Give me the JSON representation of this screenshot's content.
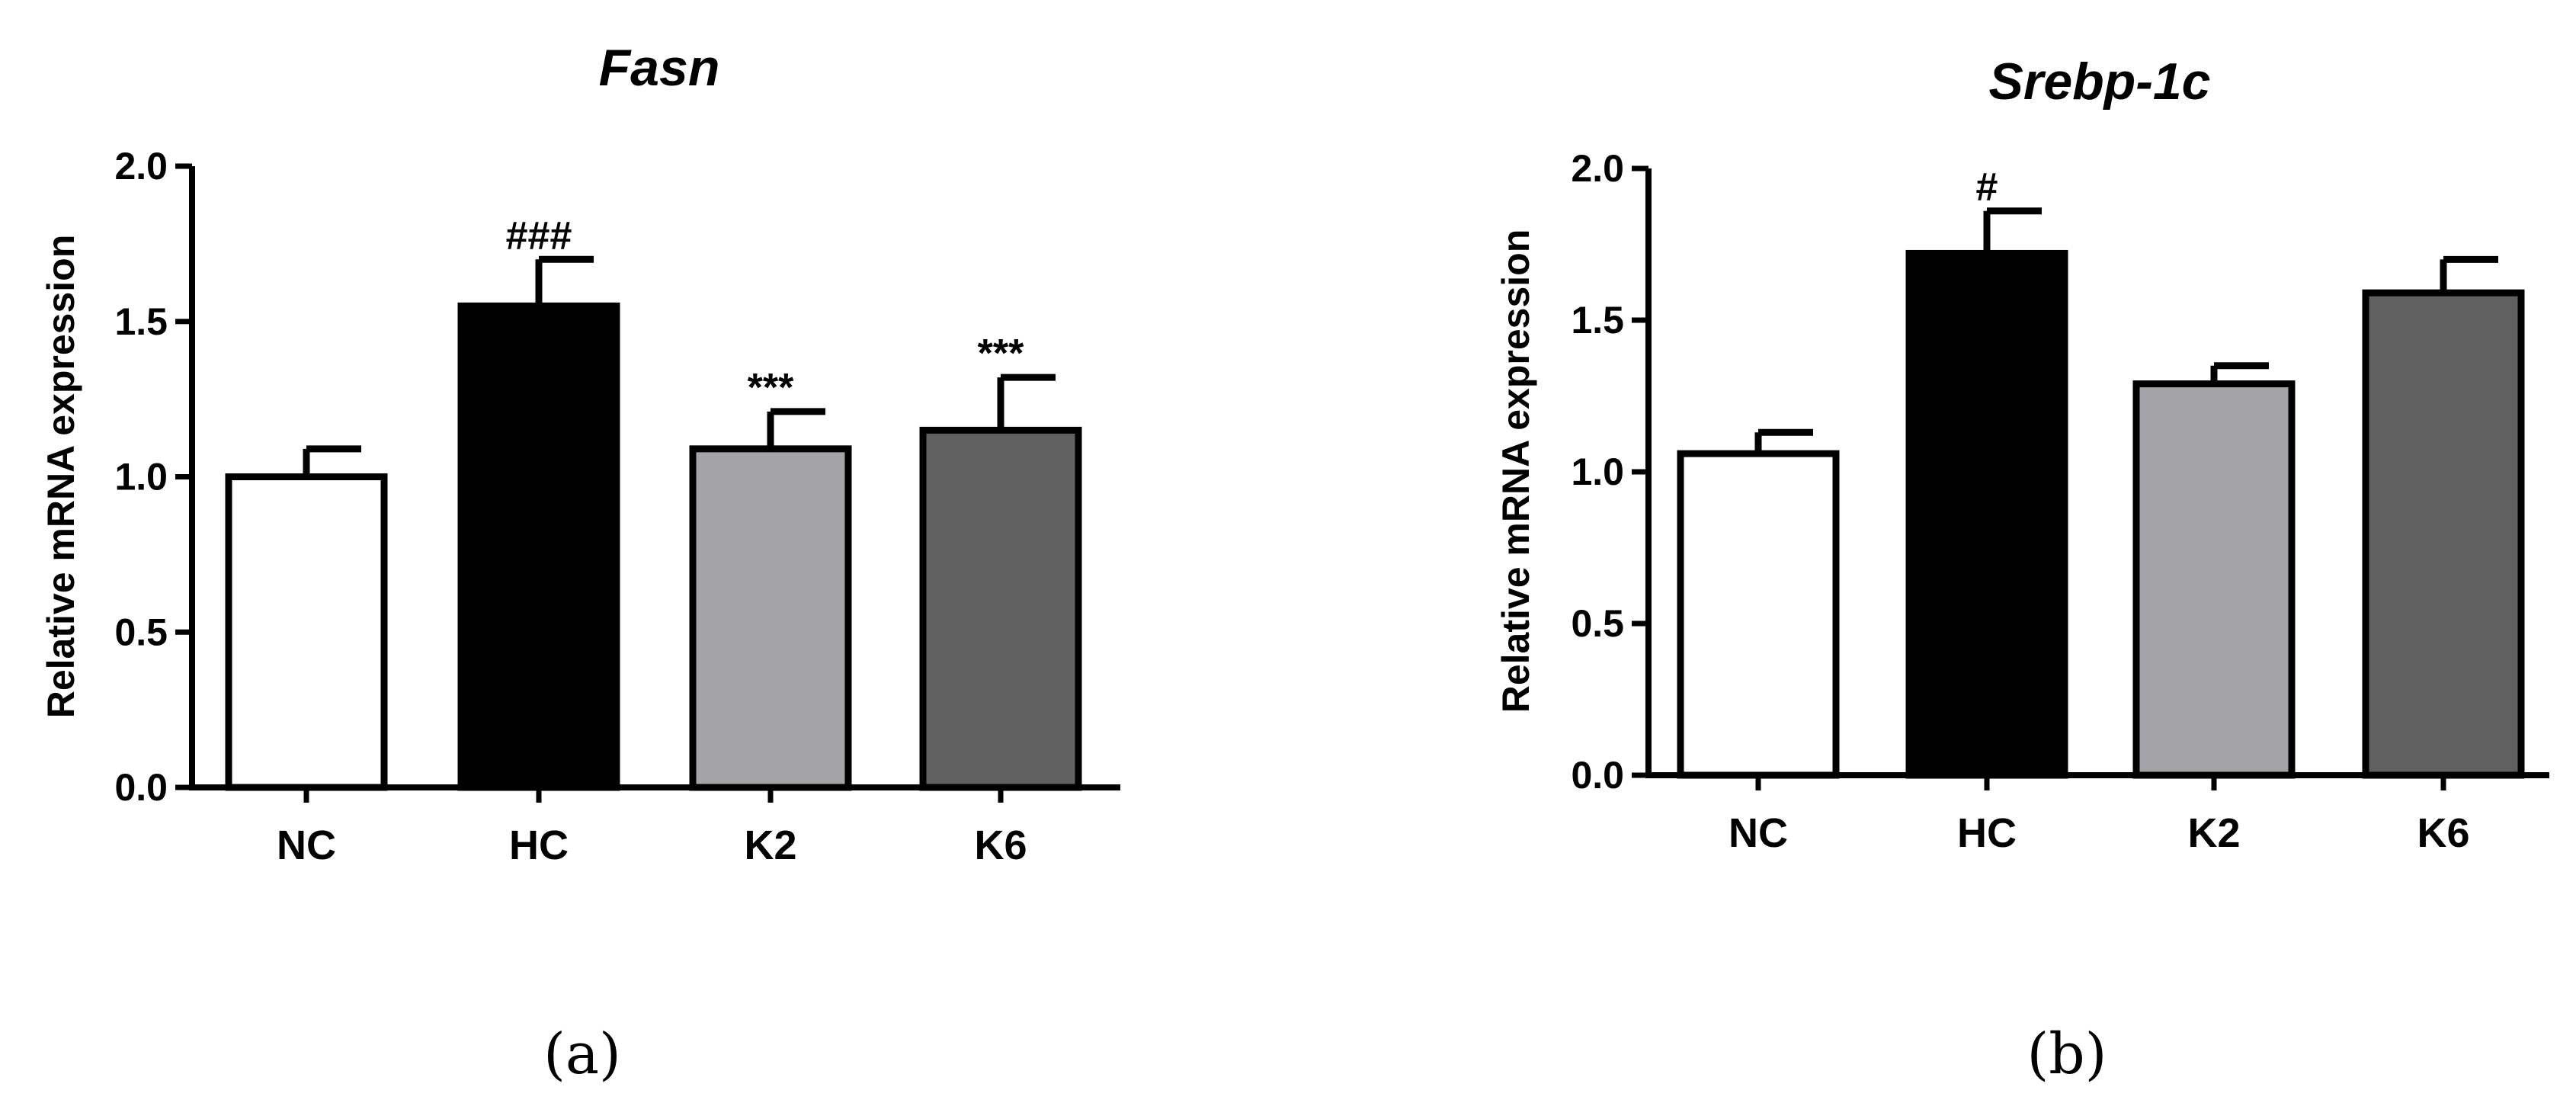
{
  "chart_data": [
    {
      "type": "bar",
      "title": "Fasn",
      "ylabel": "Relative mRNA expression",
      "xlabel": "",
      "categories": [
        "NC",
        "HC",
        "K2",
        "K6"
      ],
      "values": [
        1.0,
        1.55,
        1.09,
        1.15
      ],
      "errors": [
        0.09,
        0.15,
        0.12,
        0.17
      ],
      "annotations": [
        "",
        "###",
        "***",
        "***"
      ],
      "bar_colors": [
        "#ffffff",
        "#000000",
        "#a3a3a8",
        "#606060"
      ],
      "ylim": [
        0,
        2.0
      ],
      "yticks": [
        "0.0",
        "0.5",
        "1.0",
        "1.5",
        "2.0"
      ],
      "grid": false,
      "panel_label": "(a)"
    },
    {
      "type": "bar",
      "title": "Srebp-1c",
      "ylabel": "Relative mRNA expression",
      "xlabel": "",
      "categories": [
        "NC",
        "HC",
        "K2",
        "K6"
      ],
      "values": [
        1.06,
        1.72,
        1.29,
        1.59
      ],
      "errors": [
        0.07,
        0.14,
        0.06,
        0.11
      ],
      "annotations": [
        "",
        "#",
        "",
        ""
      ],
      "bar_colors": [
        "#ffffff",
        "#000000",
        "#a3a3a8",
        "#606060"
      ],
      "ylim": [
        0,
        2.0
      ],
      "yticks": [
        "0.0",
        "0.5",
        "1.0",
        "1.5",
        "2.0"
      ],
      "grid": false,
      "panel_label": "(b)"
    }
  ]
}
